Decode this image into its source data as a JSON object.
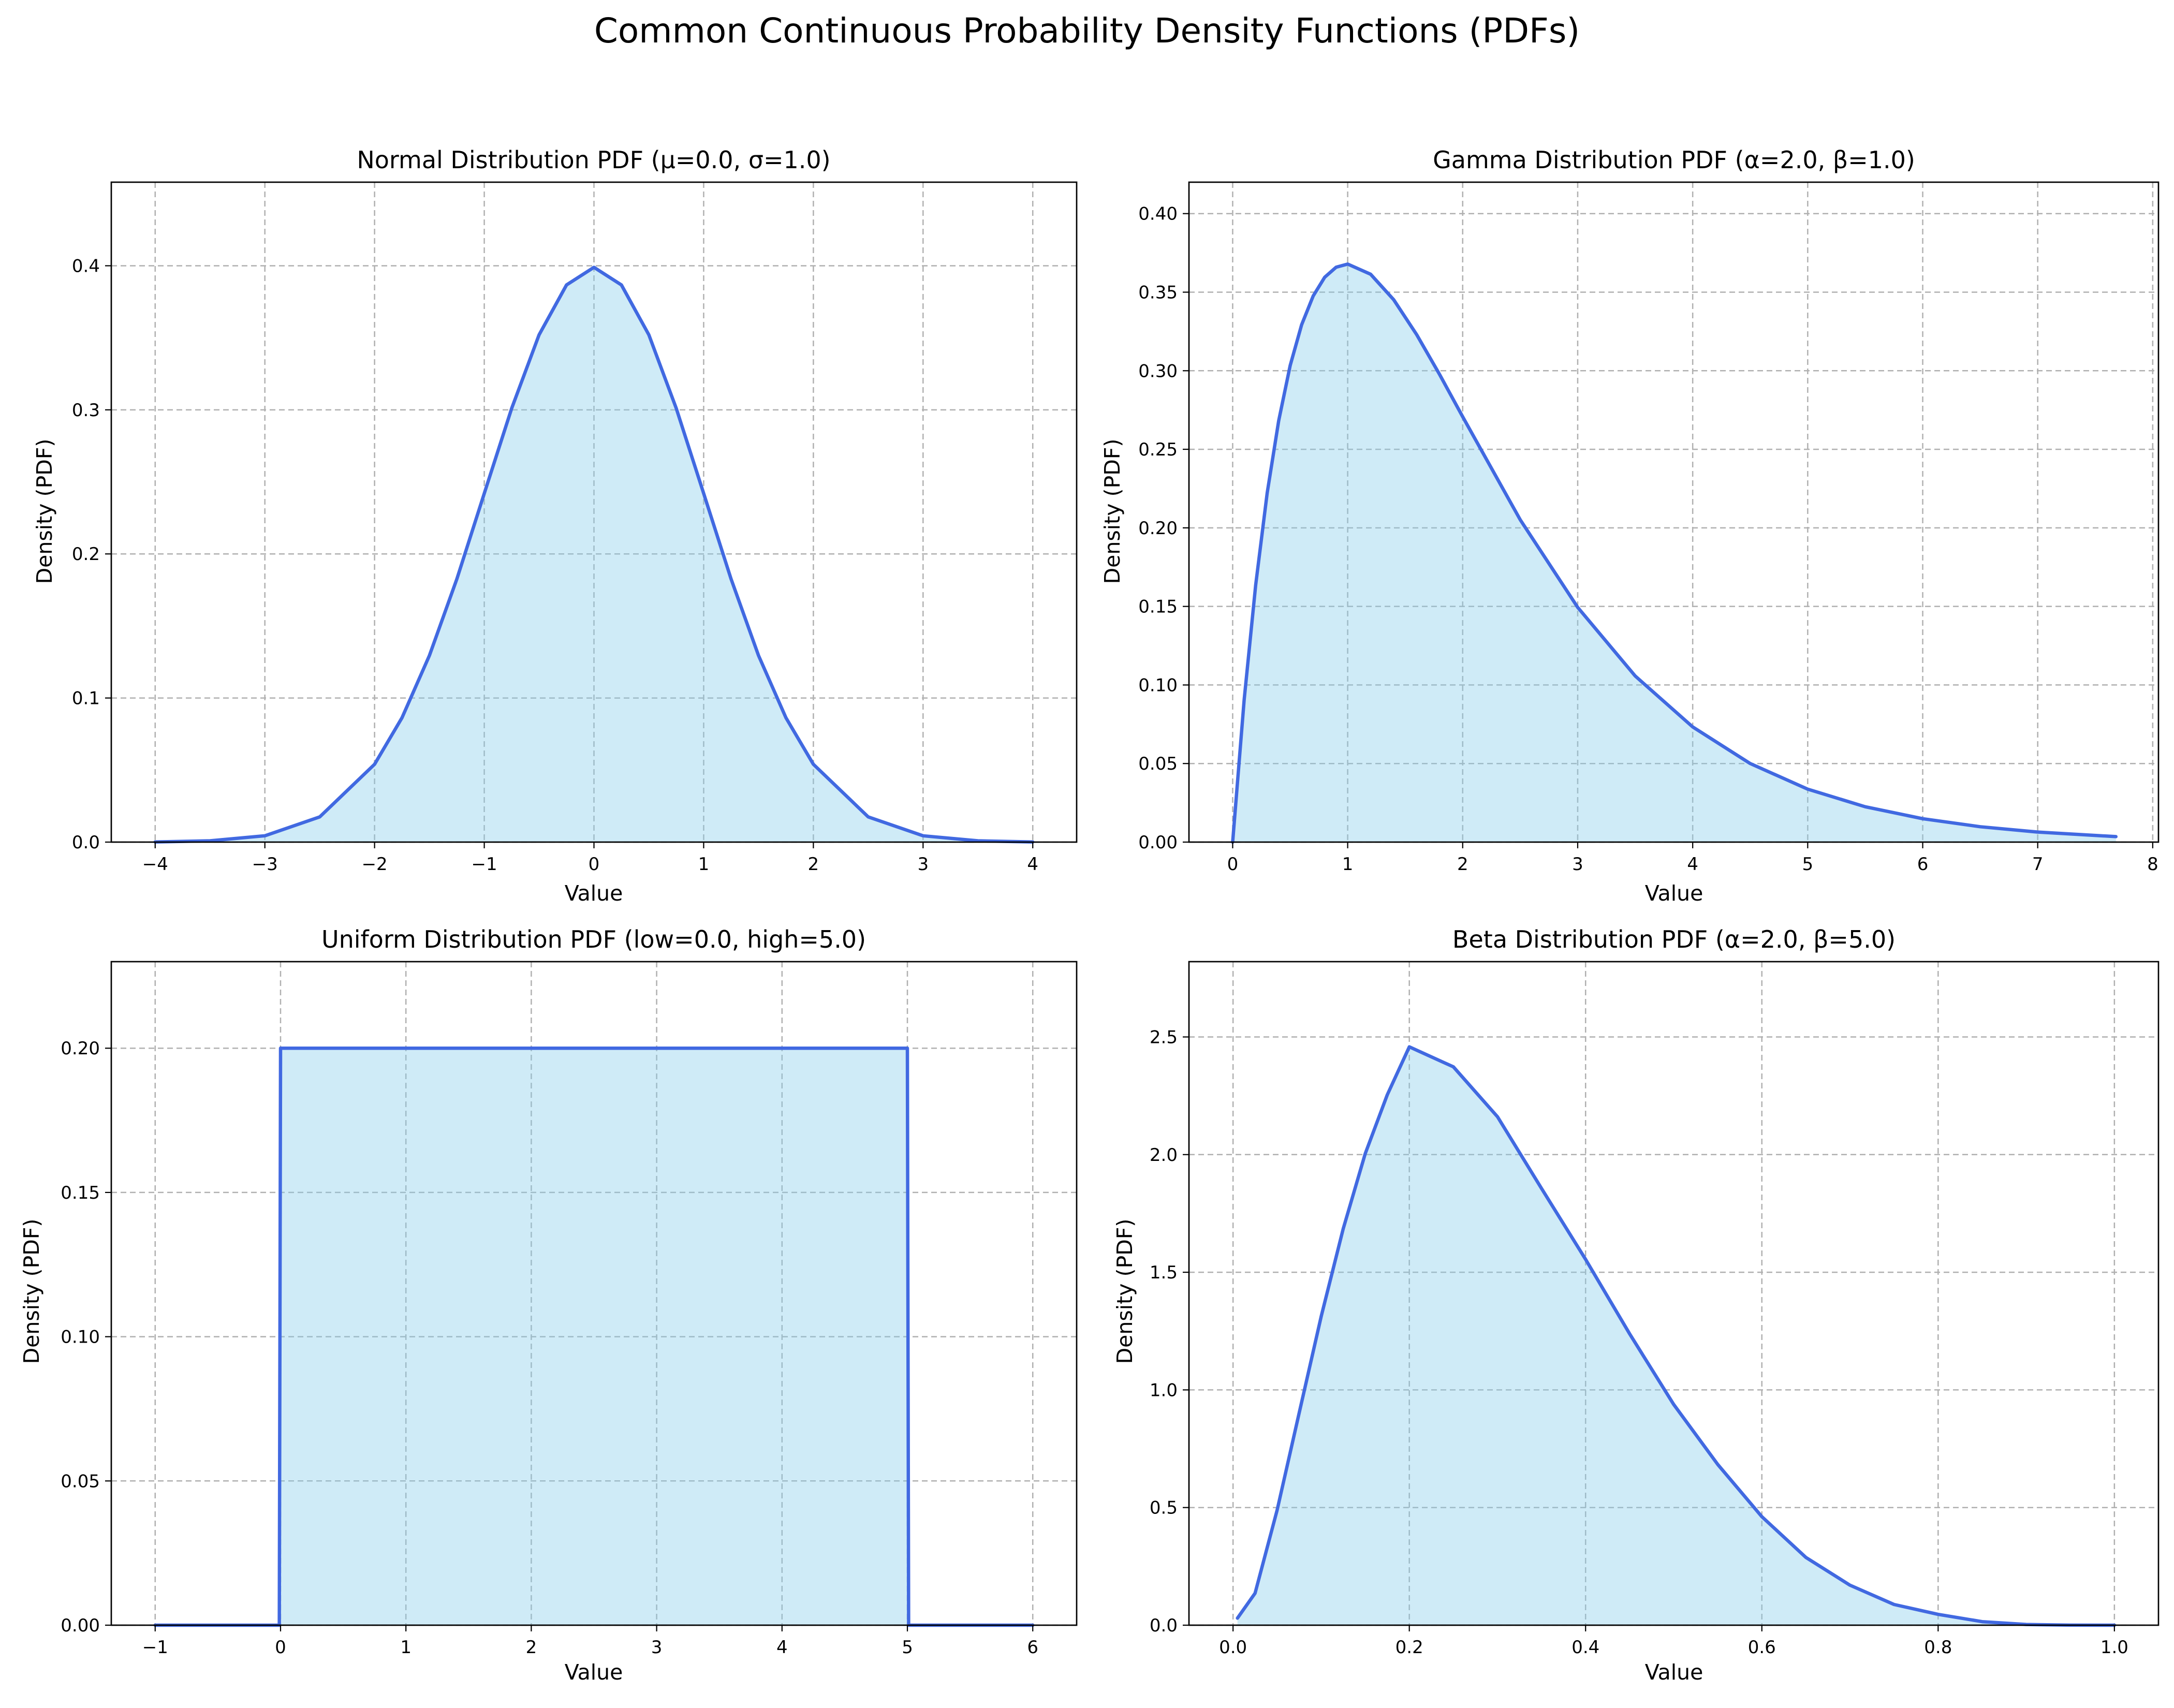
{
  "figure_title": "Common Continuous Probability Density Functions (PDFs)",
  "colors": {
    "line": "#4169e1",
    "fill": "#87ceeb",
    "fill_opacity": 0.4,
    "grid": "#b0b0b0"
  },
  "chart_data": [
    {
      "type": "area",
      "title": "Normal Distribution PDF (μ=0.0, σ=1.0)",
      "xlabel": "Value",
      "ylabel": "Density (PDF)",
      "xlim": [
        -4.4,
        4.4
      ],
      "ylim": [
        0,
        0.458
      ],
      "xticks": [
        -4,
        -3,
        -2,
        -1,
        0,
        1,
        2,
        3,
        4
      ],
      "xtick_labels": [
        "−4",
        "−3",
        "−2",
        "−1",
        "0",
        "1",
        "2",
        "3",
        "4"
      ],
      "yticks": [
        0,
        0.1,
        0.2,
        0.3,
        0.4
      ],
      "ytick_labels": [
        "0.0",
        "0.1",
        "0.2",
        "0.3",
        "0.4"
      ],
      "grid": true,
      "x": [
        -4,
        -3.5,
        -3,
        -2.5,
        -2,
        -1.75,
        -1.5,
        -1.25,
        -1,
        -0.75,
        -0.5,
        -0.25,
        0,
        0.25,
        0.5,
        0.75,
        1,
        1.25,
        1.5,
        1.75,
        2,
        2.5,
        3,
        3.5,
        4
      ],
      "y": [
        0.0001,
        0.0009,
        0.0044,
        0.0175,
        0.054,
        0.0863,
        0.1295,
        0.1826,
        0.242,
        0.3011,
        0.3521,
        0.3867,
        0.3989,
        0.3867,
        0.3521,
        0.3011,
        0.242,
        0.1826,
        0.1295,
        0.0863,
        0.054,
        0.0175,
        0.0044,
        0.0009,
        0.0001
      ]
    },
    {
      "type": "area",
      "title": "Gamma Distribution PDF (α=2.0, β=1.0)",
      "xlabel": "Value",
      "ylabel": "Density (PDF)",
      "xlim": [
        -0.38,
        8.05
      ],
      "ylim": [
        0,
        0.42
      ],
      "xticks": [
        0,
        1,
        2,
        3,
        4,
        5,
        6,
        7,
        8
      ],
      "xtick_labels": [
        "0",
        "1",
        "2",
        "3",
        "4",
        "5",
        "6",
        "7",
        "8"
      ],
      "yticks": [
        0,
        0.05,
        0.1,
        0.15,
        0.2,
        0.25,
        0.3,
        0.35,
        0.4
      ],
      "ytick_labels": [
        "0.00",
        "0.05",
        "0.10",
        "0.15",
        "0.20",
        "0.25",
        "0.30",
        "0.35",
        "0.40"
      ],
      "grid": true,
      "x": [
        0,
        0.1,
        0.2,
        0.3,
        0.4,
        0.5,
        0.6,
        0.7,
        0.8,
        0.9,
        1,
        1.2,
        1.4,
        1.6,
        1.8,
        2,
        2.5,
        3,
        3.5,
        4,
        4.5,
        5,
        5.5,
        6,
        6.5,
        7,
        7.68
      ],
      "y": [
        0,
        0.0905,
        0.1637,
        0.2222,
        0.2681,
        0.3033,
        0.3293,
        0.3476,
        0.3595,
        0.3659,
        0.3679,
        0.3614,
        0.3452,
        0.323,
        0.2975,
        0.2707,
        0.2052,
        0.1494,
        0.1057,
        0.0733,
        0.05,
        0.0337,
        0.0225,
        0.0149,
        0.0098,
        0.0064,
        0.0035
      ]
    },
    {
      "type": "area",
      "title": "Uniform Distribution PDF (low=0.0, high=5.0)",
      "xlabel": "Value",
      "ylabel": "Density (PDF)",
      "xlim": [
        -1.35,
        6.35
      ],
      "ylim": [
        0,
        0.23
      ],
      "xticks": [
        -1,
        0,
        1,
        2,
        3,
        4,
        5,
        6
      ],
      "xtick_labels": [
        "−1",
        "0",
        "1",
        "2",
        "3",
        "4",
        "5",
        "6"
      ],
      "yticks": [
        0,
        0.05,
        0.1,
        0.15,
        0.2
      ],
      "ytick_labels": [
        "0.00",
        "0.05",
        "0.10",
        "0.15",
        "0.20"
      ],
      "grid": true,
      "x": [
        -1,
        -0.01,
        0,
        5,
        5.01,
        6
      ],
      "y": [
        0,
        0,
        0.2,
        0.2,
        0,
        0
      ]
    },
    {
      "type": "area",
      "title": "Beta Distribution PDF (α=2.0, β=5.0)",
      "xlabel": "Value",
      "ylabel": "Density (PDF)",
      "xlim": [
        -0.05,
        1.05
      ],
      "ylim": [
        0,
        2.82
      ],
      "xticks": [
        0,
        0.2,
        0.4,
        0.6,
        0.8,
        1.0
      ],
      "xtick_labels": [
        "0.0",
        "0.2",
        "0.4",
        "0.6",
        "0.8",
        "1.0"
      ],
      "yticks": [
        0,
        0.5,
        1,
        1.5,
        2,
        2.5
      ],
      "ytick_labels": [
        "0.0",
        "0.5",
        "1.0",
        "1.5",
        "2.0",
        "2.5"
      ],
      "grid": true,
      "x": [
        0.005,
        0.025,
        0.05,
        0.075,
        0.1,
        0.125,
        0.15,
        0.175,
        0.2,
        0.25,
        0.3,
        0.35,
        0.4,
        0.45,
        0.5,
        0.55,
        0.6,
        0.65,
        0.7,
        0.75,
        0.8,
        0.85,
        0.9,
        0.95,
        1.0
      ],
      "y": [
        0.03,
        0.136,
        0.489,
        0.901,
        1.312,
        1.685,
        2.004,
        2.254,
        2.458,
        2.373,
        2.161,
        1.856,
        1.555,
        1.238,
        0.938,
        0.683,
        0.461,
        0.288,
        0.17,
        0.088,
        0.046,
        0.015,
        0.003,
        0.0002,
        0
      ]
    }
  ]
}
